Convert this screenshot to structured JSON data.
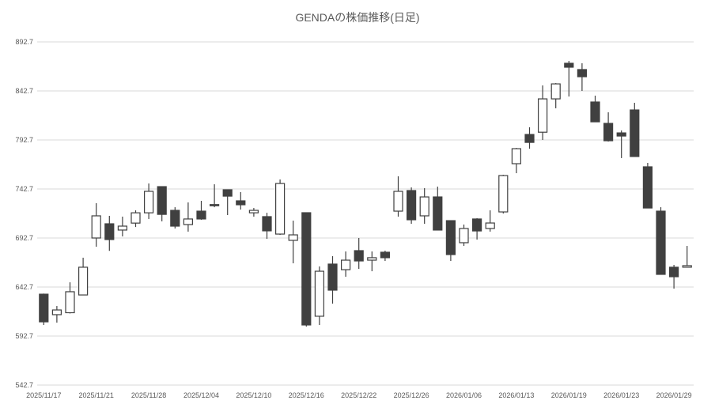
{
  "chart_data": {
    "type": "candlestick",
    "title": "GENDAの株価推移(日足)",
    "xlabel": "",
    "ylabel": "",
    "ylim": [
      542.7,
      892.7
    ],
    "yticks": [
      "542.7",
      "592.7",
      "642.7",
      "692.7",
      "742.7",
      "792.7",
      "842.7",
      "892.7"
    ],
    "grid": true,
    "legend": "none",
    "colors": {
      "up_fill": "#ffffff",
      "down_fill": "#404040",
      "stroke": "#404040",
      "grid": "#d9d9d9"
    },
    "xtick_labels": [
      "2025/11/17",
      "2025/11/21",
      "2025/11/28",
      "2025/12/04",
      "2025/12/10",
      "2025/12/16",
      "2025/12/22",
      "2025/12/26",
      "2026/01/06",
      "2026/01/13",
      "2026/01/19",
      "2026/01/23",
      "2026/01/29"
    ],
    "dates": [
      "2025/11/17",
      "2025/11/18",
      "2025/11/19",
      "2025/11/20",
      "2025/11/21",
      "2025/11/25",
      "2025/11/26",
      "2025/11/27",
      "2025/11/28",
      "2025/12/01",
      "2025/12/02",
      "2025/12/03",
      "2025/12/04",
      "2025/12/05",
      "2025/12/08",
      "2025/12/09",
      "2025/12/10",
      "2025/12/11",
      "2025/12/12",
      "2025/12/15",
      "2025/12/16",
      "2025/12/17",
      "2025/12/18",
      "2025/12/19",
      "2025/12/22",
      "2025/12/23",
      "2025/12/24",
      "2025/12/25",
      "2025/12/26",
      "2025/12/29",
      "2025/12/30",
      "2026/01/05",
      "2026/01/06",
      "2026/01/07",
      "2026/01/08",
      "2026/01/09",
      "2026/01/13",
      "2026/01/14",
      "2026/01/15",
      "2026/01/16",
      "2026/01/19",
      "2026/01/20",
      "2026/01/21",
      "2026/01/22",
      "2026/01/23",
      "2026/01/26",
      "2026/01/27",
      "2026/01/28",
      "2026/01/29",
      "2026/01/30"
    ],
    "ohlc": [
      [
        635.4,
        636,
        604,
        607.2
      ],
      [
        614.5,
        623.3,
        606.4,
        619.3
      ],
      [
        616.5,
        647.5,
        615.7,
        637.9
      ],
      [
        634.6,
        672.6,
        634.6,
        662.9
      ],
      [
        692.7,
        728.2,
        683.8,
        715.3
      ],
      [
        707.2,
        715.3,
        679.6,
        691.1
      ],
      [
        700.8,
        714.5,
        694.3,
        704.8
      ],
      [
        707.9,
        720.9,
        703.9,
        718.4
      ],
      [
        718.4,
        748.3,
        712.1,
        740.3
      ],
      [
        745.1,
        745.5,
        709.7,
        716.8
      ],
      [
        720.9,
        724.1,
        702.4,
        704.8
      ],
      [
        706.4,
        729,
        699.2,
        712.1
      ],
      [
        720.1,
        730.6,
        711.3,
        712.1
      ],
      [
        726.8,
        747.5,
        724.1,
        726.4
      ],
      [
        741.9,
        742.2,
        716.1,
        735.4
      ],
      [
        730.6,
        739.5,
        721.7,
        726.6
      ],
      [
        718.4,
        723.3,
        714.5,
        720.9
      ],
      [
        714.5,
        718.4,
        691.9,
        700.0
      ],
      [
        696.7,
        752.4,
        695.9,
        748.3
      ],
      [
        690.3,
        710.4,
        666.9,
        695.9
      ],
      [
        718.5,
        718.5,
        602.4,
        604.0
      ],
      [
        612.9,
        663.7,
        604.0,
        658.8
      ],
      [
        666.1,
        674.2,
        625.8,
        639.5
      ],
      [
        660.4,
        679,
        653.2,
        670.1
      ],
      [
        679.8,
        692.7,
        661.2,
        669.3
      ],
      [
        670.1,
        679,
        658.8,
        672.6
      ],
      [
        678.2,
        679.8,
        669.3,
        672.6
      ],
      [
        720.1,
        755.6,
        714.5,
        740.3
      ],
      [
        741.1,
        744.3,
        707.2,
        711.3
      ],
      [
        715.3,
        743.5,
        707.2,
        734.6
      ],
      [
        734.6,
        745.1,
        700.8,
        700.8
      ],
      [
        710.4,
        710.4,
        669.3,
        675.8
      ],
      [
        687.9,
        706.4,
        684.6,
        702.4
      ],
      [
        712.1,
        712.9,
        691.1,
        699.9
      ],
      [
        702.4,
        720.9,
        699.2,
        708.0
      ],
      [
        719.3,
        757.2,
        717.7,
        756.4
      ],
      [
        768.5,
        784.6,
        758.8,
        783.8
      ],
      [
        798.3,
        805.6,
        783.8,
        790.2
      ],
      [
        800.6,
        848.3,
        792.7,
        834.6
      ],
      [
        834.6,
        850.7,
        825.0,
        849.9
      ],
      [
        870.9,
        873.3,
        837.0,
        866.9
      ],
      [
        864.5,
        870.9,
        842.7,
        857.2
      ],
      [
        831.4,
        837.9,
        811.2,
        811.2
      ],
      [
        809.6,
        820.9,
        791.1,
        791.9
      ],
      [
        799.9,
        802.4,
        774.2,
        796.7
      ],
      [
        823.3,
        830.6,
        775.8,
        775.8
      ],
      [
        765.3,
        769.3,
        723.3,
        723.3
      ],
      [
        720.1,
        724.1,
        655.6,
        655.6
      ],
      [
        662.9,
        665.3,
        641.1,
        653.2
      ],
      [
        662.9,
        684.6,
        662.9,
        664.5
      ]
    ]
  }
}
